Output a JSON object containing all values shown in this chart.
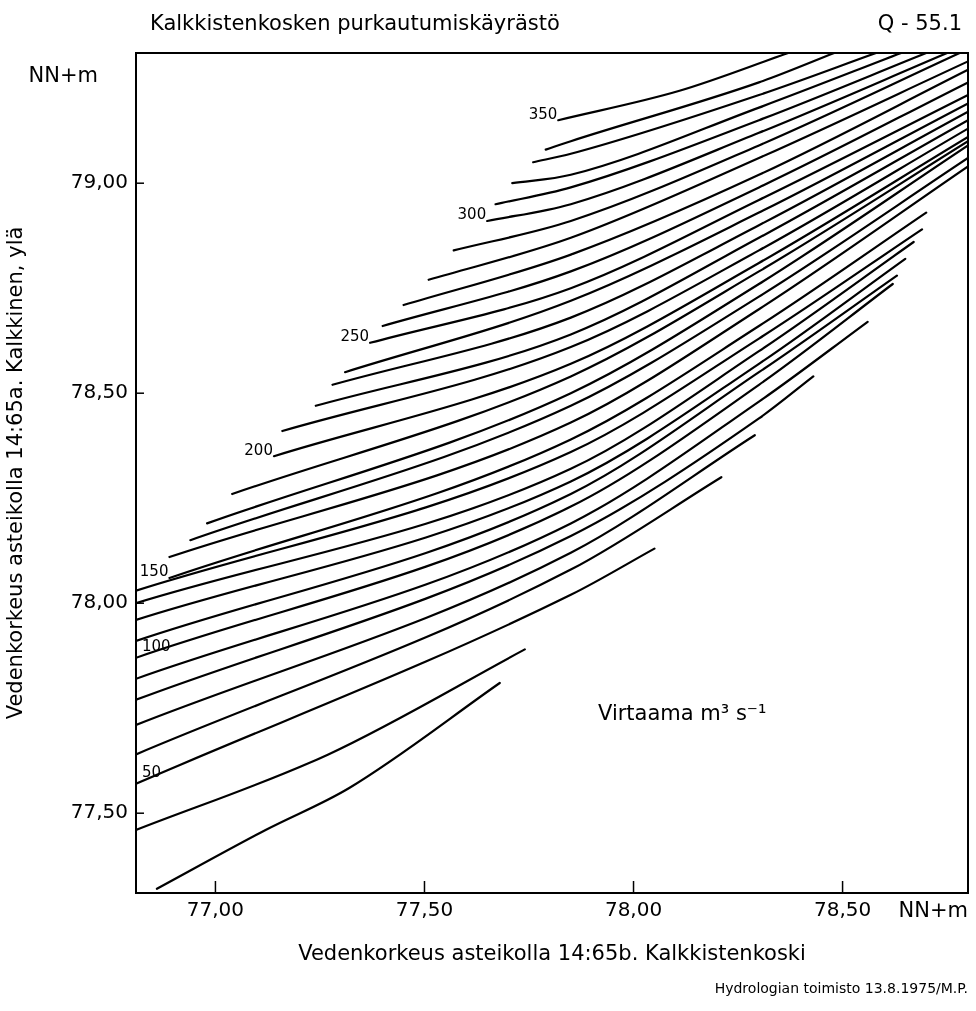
{
  "chart_data": {
    "type": "line",
    "title": "Kalkkistenkosken purkautumiskäyrästö",
    "xlabel": "Vedenkorkeus asteikolla 14:65b. Kalkkistenkoski",
    "ylabel": "Vedenkorkeus asteikolla 14:65a. Kalkkinen, ylä",
    "annotations": [
      "Q - 55.1",
      "NN+m",
      "NN+m",
      "Virtaama m³ s⁻¹",
      "Hydrologian toimisto 13.8.1975/M.P."
    ],
    "xlim": [
      76.81,
      78.8
    ],
    "ylim": [
      77.31,
      79.31
    ],
    "xticks": [
      {
        "value": 77,
        "label": "77,00"
      },
      {
        "value": 77.5,
        "label": "77,50"
      },
      {
        "value": 78,
        "label": "78,00"
      },
      {
        "value": 78.5,
        "label": "78,50"
      }
    ],
    "yticks": [
      {
        "value": 77.5,
        "label": "77,50"
      },
      {
        "value": 78,
        "label": "78,00"
      },
      {
        "value": 78.5,
        "label": "78,50"
      },
      {
        "value": 79,
        "label": "79,00"
      }
    ],
    "legend": false,
    "series": [
      {
        "color": "#000000",
        "x": [
          76.86,
          77.12,
          77.32,
          77.68
        ],
        "values": [
          77.32,
          77.46,
          77.56,
          77.81
        ]
      },
      {
        "color": "#000000",
        "x": [
          76.81,
          77.27,
          77.74
        ],
        "values": [
          77.46,
          77.64,
          77.89
        ]
      },
      {
        "name": "50",
        "color": "#000000",
        "x": [
          76.81,
          77.85,
          78.05
        ],
        "values": [
          77.57,
          78.02,
          78.13
        ]
      },
      {
        "color": "#000000",
        "x": [
          76.81,
          77.85,
          78.21
        ],
        "values": [
          77.64,
          78.08,
          78.3
        ]
      },
      {
        "color": "#000000",
        "x": [
          76.81,
          77.85,
          78.29
        ],
        "values": [
          77.71,
          78.12,
          78.4
        ]
      },
      {
        "color": "#000000",
        "x": [
          76.81,
          77.85,
          78.3,
          78.43
        ],
        "values": [
          77.77,
          78.16,
          78.44,
          78.54
        ]
      },
      {
        "color": "#000000",
        "x": [
          76.81,
          77.85,
          78.3,
          78.56
        ],
        "values": [
          77.82,
          78.19,
          78.48,
          78.67
        ]
      },
      {
        "name": "100",
        "color": "#000000",
        "x": [
          76.81,
          77.85,
          78.3,
          78.62
        ],
        "values": [
          77.87,
          78.23,
          78.52,
          78.76
        ]
      },
      {
        "color": "#000000",
        "x": [
          76.81,
          77.85,
          78.3,
          78.63
        ],
        "values": [
          77.91,
          78.26,
          78.55,
          78.78
        ]
      },
      {
        "color": "#000000",
        "x": [
          76.81,
          77.85,
          78.3,
          78.65
        ],
        "values": [
          77.96,
          78.29,
          78.57,
          78.82
        ]
      },
      {
        "color": "#000000",
        "x": [
          76.81,
          77.85,
          78.3,
          78.67
        ],
        "values": [
          78.0,
          78.32,
          78.6,
          78.86
        ]
      },
      {
        "color": "#000000",
        "x": [
          76.81,
          77.85,
          78.3,
          78.69
        ],
        "values": [
          78.03,
          78.36,
          78.63,
          78.89
        ]
      },
      {
        "name": "150",
        "color": "#000000",
        "x": [
          76.89,
          77.85,
          78.3,
          78.7
        ],
        "values": [
          78.06,
          78.39,
          78.66,
          78.93
        ]
      },
      {
        "color": "#000000",
        "x": [
          76.89,
          77.85,
          78.3,
          78.8
        ],
        "values": [
          78.11,
          78.43,
          78.7,
          79.04
        ]
      },
      {
        "color": "#000000",
        "x": [
          76.94,
          77.85,
          78.3,
          78.8
        ],
        "values": [
          78.15,
          78.47,
          78.73,
          79.06
        ]
      },
      {
        "color": "#000000",
        "x": [
          76.98,
          77.85,
          78.3,
          78.8
        ],
        "values": [
          78.19,
          78.5,
          78.76,
          79.09
        ]
      },
      {
        "color": "#000000",
        "x": [
          77.04,
          77.85,
          78.3,
          78.8
        ],
        "values": [
          78.26,
          78.54,
          78.79,
          79.1
        ]
      },
      {
        "name": "200",
        "color": "#000000",
        "x": [
          77.14,
          77.85,
          78.3,
          78.8
        ],
        "values": [
          78.35,
          78.57,
          78.81,
          79.11
        ]
      },
      {
        "color": "#000000",
        "x": [
          77.16,
          77.85,
          78.3,
          78.8
        ],
        "values": [
          78.41,
          78.61,
          78.84,
          79.13
        ]
      },
      {
        "color": "#000000",
        "x": [
          77.24,
          77.85,
          78.3,
          78.8
        ],
        "values": [
          78.47,
          78.64,
          78.87,
          79.15
        ]
      },
      {
        "color": "#000000",
        "x": [
          77.28,
          77.85,
          78.3,
          78.8
        ],
        "values": [
          78.52,
          78.68,
          78.9,
          79.17
        ]
      },
      {
        "color": "#000000",
        "x": [
          77.31,
          77.85,
          78.3,
          78.8
        ],
        "values": [
          78.55,
          78.72,
          78.93,
          79.19
        ]
      },
      {
        "name": "250",
        "color": "#000000",
        "x": [
          77.37,
          77.85,
          78.3,
          78.8
        ],
        "values": [
          78.62,
          78.75,
          78.96,
          79.21
        ]
      },
      {
        "color": "#000000",
        "x": [
          77.4,
          77.85,
          78.3,
          78.8
        ],
        "values": [
          78.66,
          78.79,
          78.99,
          79.24
        ]
      },
      {
        "color": "#000000",
        "x": [
          77.45,
          77.85,
          78.3,
          78.8
        ],
        "values": [
          78.71,
          78.83,
          79.02,
          79.27
        ]
      },
      {
        "color": "#000000",
        "x": [
          77.51,
          77.85,
          78.3,
          78.8
        ],
        "values": [
          78.77,
          78.87,
          79.06,
          79.29
        ]
      },
      {
        "color": "#000000",
        "x": [
          77.57,
          77.85,
          78.3,
          78.78
        ],
        "values": [
          78.84,
          78.91,
          79.09,
          79.31
        ]
      },
      {
        "name": "300",
        "color": "#000000",
        "x": [
          77.65,
          77.85,
          78.3,
          78.75
        ],
        "values": [
          78.91,
          78.95,
          79.12,
          79.31
        ]
      },
      {
        "color": "#000000",
        "x": [
          77.67,
          77.85,
          78.3,
          78.7
        ],
        "values": [
          78.95,
          78.99,
          79.15,
          79.31
        ]
      },
      {
        "color": "#000000",
        "x": [
          77.71,
          77.85,
          78.3,
          78.64
        ],
        "values": [
          79.0,
          79.02,
          79.18,
          79.31
        ]
      },
      {
        "color": "#000000",
        "x": [
          77.76,
          77.85,
          78.3,
          78.58
        ],
        "values": [
          79.05,
          79.07,
          79.21,
          79.31
        ]
      },
      {
        "color": "#000000",
        "x": [
          77.79,
          77.85,
          78.3,
          78.48
        ],
        "values": [
          79.08,
          79.1,
          79.24,
          79.31
        ]
      },
      {
        "name": "350",
        "color": "#000000",
        "x": [
          77.82,
          78.11,
          78.37
        ],
        "values": [
          79.15,
          79.22,
          79.31
        ]
      }
    ]
  }
}
